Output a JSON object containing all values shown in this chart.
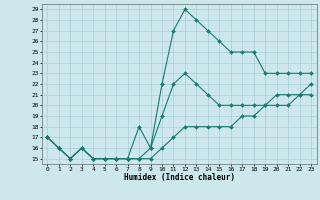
{
  "xlabel": "Humidex (Indice chaleur)",
  "xlim": [
    -0.5,
    23.5
  ],
  "ylim": [
    14.5,
    29.5
  ],
  "xticks": [
    0,
    1,
    2,
    3,
    4,
    5,
    6,
    7,
    8,
    9,
    10,
    11,
    12,
    13,
    14,
    15,
    16,
    17,
    18,
    19,
    20,
    21,
    22,
    23
  ],
  "yticks": [
    15,
    16,
    17,
    18,
    19,
    20,
    21,
    22,
    23,
    24,
    25,
    26,
    27,
    28,
    29
  ],
  "line_color": "#1a7a6e",
  "bg_color": "#cce8ec",
  "grid_color": "#aacdd4",
  "line1_x": [
    0,
    1,
    2,
    3,
    4,
    5,
    6,
    7,
    8,
    9,
    10,
    11,
    12,
    13,
    14,
    15,
    16,
    17,
    18,
    19,
    20,
    21,
    22,
    23
  ],
  "line1_y": [
    17,
    16,
    15,
    16,
    15,
    15,
    15,
    15,
    15,
    16,
    22,
    27,
    29,
    28,
    27,
    26,
    25,
    25,
    25,
    23,
    23,
    23,
    23,
    23
  ],
  "line2_x": [
    0,
    1,
    2,
    3,
    4,
    5,
    6,
    7,
    8,
    9,
    10,
    11,
    12,
    13,
    14,
    15,
    16,
    17,
    18,
    19,
    20,
    21,
    22,
    23
  ],
  "line2_y": [
    17,
    16,
    15,
    16,
    15,
    15,
    15,
    15,
    18,
    16,
    19,
    22,
    23,
    22,
    21,
    20,
    20,
    20,
    20,
    20,
    21,
    21,
    21,
    21
  ],
  "line3_x": [
    0,
    1,
    2,
    3,
    4,
    5,
    6,
    7,
    8,
    9,
    10,
    11,
    12,
    13,
    14,
    15,
    16,
    17,
    18,
    19,
    20,
    21,
    22,
    23
  ],
  "line3_y": [
    17,
    16,
    15,
    16,
    15,
    15,
    15,
    15,
    15,
    15,
    16,
    17,
    18,
    18,
    18,
    18,
    18,
    19,
    19,
    20,
    20,
    20,
    21,
    22
  ]
}
